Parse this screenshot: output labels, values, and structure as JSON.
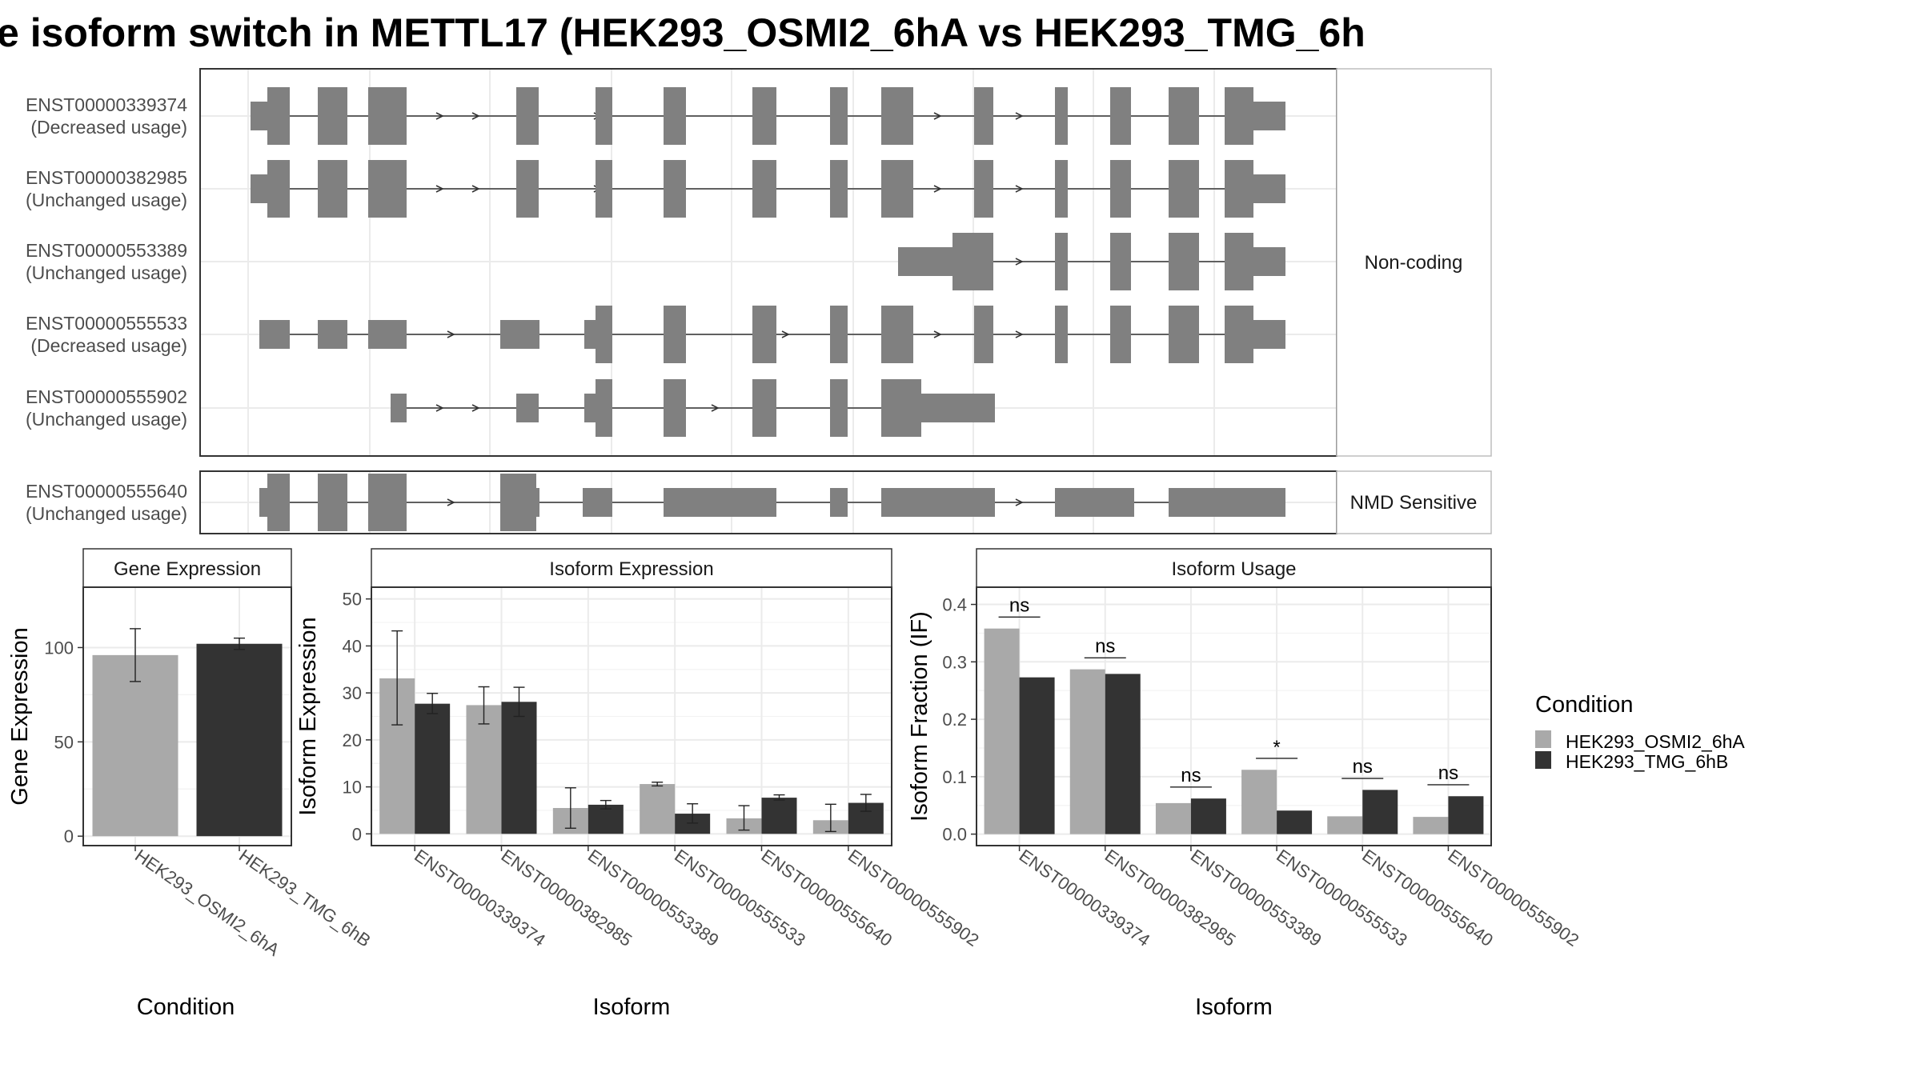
{
  "title": "e isoform switch in METTL17 (HEK293_OSMI2_6hA vs HEK293_TMG_6h",
  "colors": {
    "exon": "#808080",
    "cond1": "#a9a9a9",
    "cond2": "#333333",
    "grid": "#ebebeb",
    "strip_bg": "#ffffff",
    "border": "#333333"
  },
  "structure": {
    "facets": [
      {
        "label": "Non-coding",
        "transcripts": [
          {
            "id": "ENST00000339374",
            "usage": "(Decreased usage)"
          },
          {
            "id": "ENST00000382985",
            "usage": "(Unchanged usage)"
          },
          {
            "id": "ENST00000553389",
            "usage": "(Unchanged usage)"
          },
          {
            "id": "ENST00000555533",
            "usage": "(Decreased usage)"
          },
          {
            "id": "ENST00000555902",
            "usage": "(Unchanged usage)"
          }
        ]
      },
      {
        "label": "NMD Sensitive",
        "transcripts": [
          {
            "id": "ENST00000555640",
            "usage": "(Unchanged usage)"
          }
        ]
      }
    ]
  },
  "chart_data": [
    {
      "type": "bar",
      "title": "Gene Expression",
      "xlabel": "Condition",
      "ylabel": "Gene Expression",
      "categories": [
        "HEK293_OSMI2_6hA",
        "HEK293_TMG_6hB"
      ],
      "series": [
        {
          "name": "HEK293_OSMI2_6hA",
          "values": [
            96,
            null
          ],
          "err": [
            [
              82,
              110
            ],
            null
          ]
        },
        {
          "name": "HEK293_TMG_6hB",
          "values": [
            null,
            102
          ],
          "err": [
            null,
            [
              99,
              105
            ]
          ]
        }
      ],
      "ylim": [
        -5,
        132
      ],
      "yticks": [
        0,
        50,
        100
      ]
    },
    {
      "type": "bar",
      "title": "Isoform Expression",
      "xlabel": "Isoform",
      "ylabel": "Isoform Expression",
      "categories": [
        "ENST00000339374",
        "ENST00000382985",
        "ENST00000553389",
        "ENST00000555533",
        "ENST00000555640",
        "ENST00000555902"
      ],
      "series": [
        {
          "name": "HEK293_OSMI2_6hA",
          "values": [
            33.1,
            27.4,
            5.5,
            10.6,
            3.3,
            2.9
          ],
          "err": [
            [
              23.2,
              43.2
            ],
            [
              23.4,
              31.3
            ],
            [
              1.2,
              9.8
            ],
            [
              10.2,
              11.0
            ],
            [
              0.8,
              6.0
            ],
            [
              0.5,
              6.3
            ]
          ]
        },
        {
          "name": "HEK293_TMG_6hB",
          "values": [
            27.7,
            28.1,
            6.2,
            4.3,
            7.7,
            6.6
          ],
          "err": [
            [
              25.6,
              29.9
            ],
            [
              25.0,
              31.2
            ],
            [
              5.3,
              7.1
            ],
            [
              2.3,
              6.4
            ],
            [
              7.2,
              8.3
            ],
            [
              4.8,
              8.4
            ]
          ]
        }
      ],
      "ylim": [
        -2.5,
        52.5
      ],
      "yticks": [
        0,
        10,
        20,
        30,
        40,
        50
      ]
    },
    {
      "type": "bar",
      "title": "Isoform Usage",
      "xlabel": "Isoform",
      "ylabel": "Isoform Fraction (IF)",
      "categories": [
        "ENST00000339374",
        "ENST00000382985",
        "ENST00000553389",
        "ENST00000555533",
        "ENST00000555640",
        "ENST00000555902"
      ],
      "series": [
        {
          "name": "HEK293_OSMI2_6hA",
          "values": [
            0.358,
            0.287,
            0.054,
            0.112,
            0.031,
            0.03
          ]
        },
        {
          "name": "HEK293_TMG_6hB",
          "values": [
            0.273,
            0.279,
            0.062,
            0.041,
            0.077,
            0.066
          ]
        }
      ],
      "significance": [
        "ns",
        "ns",
        "ns",
        "*",
        "ns",
        "ns"
      ],
      "ylim": [
        -0.02,
        0.43
      ],
      "yticks": [
        0.0,
        0.1,
        0.2,
        0.3,
        0.4
      ],
      "ytick_labels": [
        "0.0",
        "0.1",
        "0.2",
        "0.3",
        "0.4"
      ]
    }
  ],
  "legend": {
    "title": "Condition",
    "entries": [
      "HEK293_OSMI2_6hA",
      "HEK293_TMG_6hB"
    ]
  }
}
